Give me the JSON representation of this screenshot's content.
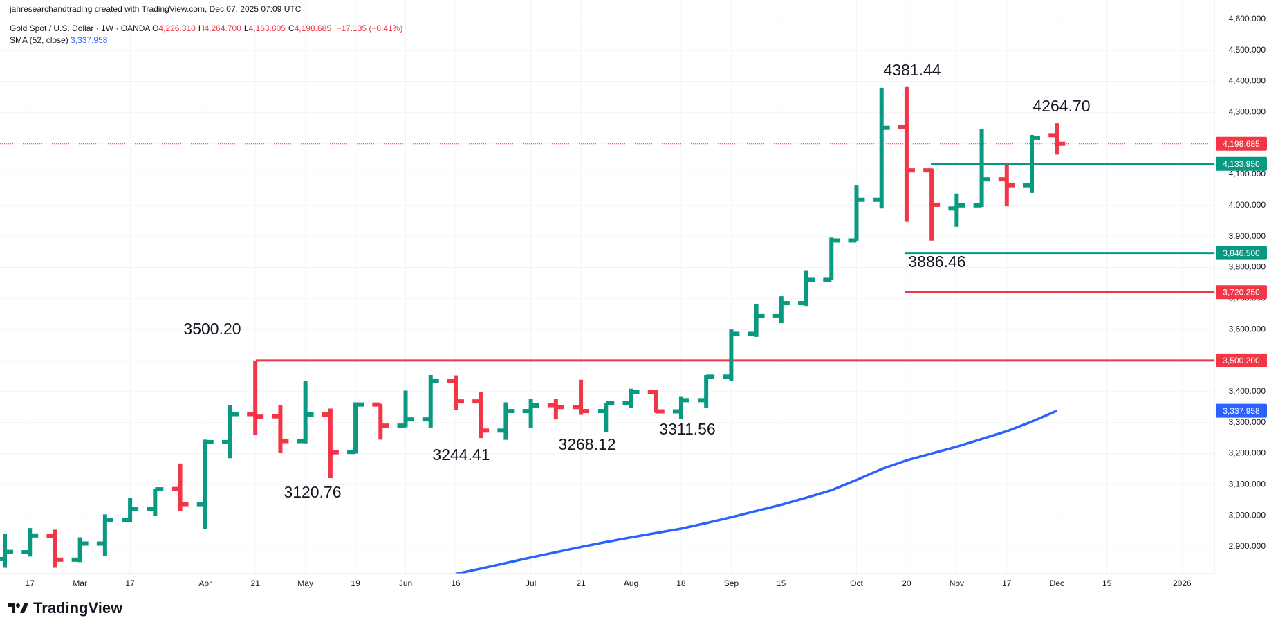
{
  "header": {
    "credit": "jahresearchandtrading created with TradingView.com, Dec 07, 2025 07:09 UTC",
    "symbol": "Gold Spot / U.S. Dollar · 1W · OANDA",
    "ohlc_legend": [
      {
        "key": "O",
        "text": "4,226.310"
      },
      {
        "key": "H",
        "text": "4,264.700"
      },
      {
        "key": "L",
        "text": "4,163.805"
      },
      {
        "key": "C",
        "text": "4,198.685"
      }
    ],
    "change": "−17.135 (−0.41%)",
    "indicator": "SMA (52, close)",
    "indicator_value": "3,337.958"
  },
  "footer": {
    "brand": "TradingView"
  },
  "chart_data": {
    "type": "ohlc",
    "categories": [
      null,
      "17",
      null,
      "Mar",
      null,
      "17",
      null,
      null,
      "Apr",
      null,
      "21",
      null,
      "May",
      null,
      "19",
      null,
      "Jun",
      null,
      "16",
      null,
      null,
      "Jul",
      null,
      "21",
      null,
      "Aug",
      null,
      "18",
      null,
      "Sep",
      null,
      "15",
      null,
      null,
      "Oct",
      null,
      "20",
      null,
      "Nov",
      null,
      "17",
      null,
      "Dec",
      null,
      "15",
      null,
      null,
      "2026"
    ],
    "up_color": "#089981",
    "down_color": "#f23645",
    "open": [
      2860,
      2882,
      2935,
      2858,
      2910,
      2985,
      3022,
      3086,
      3037,
      3237,
      3327,
      3320,
      3240,
      3326,
      3205,
      3358,
      3290,
      3310,
      3433,
      3368,
      3274,
      3337,
      3356,
      3350,
      3337,
      3362,
      3398,
      3336,
      3372,
      3448,
      3586,
      3643,
      3685,
      3760,
      3887,
      4018,
      4252,
      4113,
      3990,
      4000,
      4084,
      4065,
      4226.31,
      null,
      null,
      null,
      null,
      null
    ],
    "high": [
      2942,
      2960,
      2955,
      2930,
      3004,
      3057,
      3086,
      3168,
      3245,
      3357,
      3500.2,
      3357,
      3435,
      3345,
      3365,
      3360,
      3403,
      3453,
      3452,
      3398,
      3365,
      3375,
      3377,
      3438,
      3363,
      3409,
      3405,
      3383,
      3453,
      3600,
      3681,
      3707,
      3791,
      3896,
      4064,
      4379,
      4381.44,
      4119,
      4038,
      4245,
      4132,
      4227,
      4264.7,
      null,
      null,
      null,
      null,
      null
    ],
    "low": [
      2832,
      2868,
      2832,
      2850,
      2870,
      2980,
      2999,
      3015,
      2957,
      3185,
      3260,
      3202,
      3233,
      3120.76,
      3200,
      3245,
      3285,
      3282,
      3340,
      3250,
      3244.41,
      3282,
      3310,
      3325,
      3268.12,
      3348,
      3331,
      3311.56,
      3347,
      3433,
      3576,
      3620,
      3676,
      3760,
      3886,
      3990,
      3947,
      3886.46,
      3931,
      3995,
      3997,
      4040,
      4163.805,
      null,
      null,
      null,
      null,
      null
    ],
    "close": [
      2883,
      2936,
      2858,
      2910,
      2985,
      3022,
      3085,
      3037,
      3237,
      3327,
      3319,
      3240,
      3326,
      3204,
      3358,
      3290,
      3310,
      3433,
      3368,
      3274,
      3337,
      3355,
      3350,
      3337,
      3362,
      3398,
      3336,
      3372,
      3448,
      3586,
      3643,
      3685,
      3760,
      3887,
      4018,
      4250,
      4113,
      4002,
      4000,
      4084,
      4065,
      4218,
      4198.685,
      null,
      null,
      null,
      null,
      null
    ],
    "series": [
      {
        "name": "SMA (52, close)",
        "color": "#2962ff",
        "axis_label": "3,337.958",
        "values": [
          null,
          null,
          null,
          null,
          null,
          null,
          null,
          null,
          null,
          null,
          null,
          null,
          null,
          null,
          null,
          null,
          null,
          null,
          2812,
          2829,
          2847,
          2865,
          2882,
          2899,
          2915,
          2930,
          2944,
          2958,
          2976,
          2995,
          3015,
          3035,
          3058,
          3082,
          3115,
          3150,
          3178,
          3200,
          3222,
          3247,
          3272,
          3303,
          3337.958,
          null,
          null,
          null,
          null,
          null
        ]
      }
    ],
    "ylim": [
      2813,
      4662
    ],
    "yticks": [
      {
        "value": 4600,
        "label": "4,600.000"
      },
      {
        "value": 4500,
        "label": "4,500.000"
      },
      {
        "value": 4400,
        "label": "4,400.000"
      },
      {
        "value": 4300,
        "label": "4,300.000"
      },
      {
        "value": 4200,
        "label": "4,200.000"
      },
      {
        "value": 4100,
        "label": "4,100.000"
      },
      {
        "value": 4000,
        "label": "4,000.000"
      },
      {
        "value": 3900,
        "label": "3,900.000"
      },
      {
        "value": 3800,
        "label": "3,800.000"
      },
      {
        "value": 3700,
        "label": "3,700.000"
      },
      {
        "value": 3600,
        "label": "3,600.000"
      },
      {
        "value": 3500,
        "label": "3,500.000"
      },
      {
        "value": 3400,
        "label": "3,400.000"
      },
      {
        "value": 3300,
        "label": "3,300.000"
      },
      {
        "value": 3200,
        "label": "3,200.000"
      },
      {
        "value": 3100,
        "label": "3,100.000"
      },
      {
        "value": 3000,
        "label": "3,000.000"
      },
      {
        "value": 2900,
        "label": "2,900.000"
      }
    ],
    "grid": true,
    "levels": [
      {
        "value": 4198.685,
        "label": "4,198.685",
        "color": "#f23645",
        "style": "dotted"
      },
      {
        "value": 4133.95,
        "label": "4,133.950",
        "color": "#089981",
        "style": "solid"
      },
      {
        "value": 3846.5,
        "label": "3,846.500",
        "color": "#089981",
        "style": "solid"
      },
      {
        "value": 3720.25,
        "label": "3,720.250",
        "color": "#f23645",
        "style": "solid"
      },
      {
        "value": 3500.2,
        "label": "3,500.200",
        "color": "#f23645",
        "style": "solid"
      }
    ],
    "annotations": [
      "4381.44",
      "4264.70",
      "3886.46",
      "3500.20",
      "3120.76",
      "3244.41",
      "3268.12",
      "3311.56"
    ]
  }
}
